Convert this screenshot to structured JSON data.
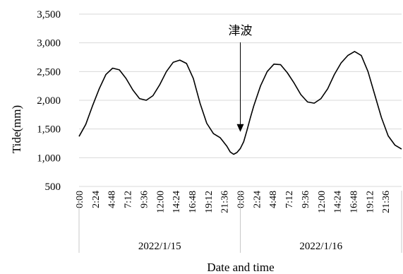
{
  "chart_data": {
    "type": "line",
    "title": "",
    "xlabel": "Date and time",
    "ylabel": "Tide(mm)",
    "ylim": [
      500,
      3500
    ],
    "y_ticks": [
      500,
      1000,
      1500,
      2000,
      2500,
      3000,
      3500
    ],
    "y_tick_labels": [
      "500",
      "1,000",
      "1,500",
      "2,000",
      "2,500",
      "3,000",
      "3,500"
    ],
    "x_tick_labels": [
      "0:00",
      "2:24",
      "4:48",
      "7:12",
      "9:36",
      "12:00",
      "14:24",
      "16:48",
      "19:12",
      "21:36",
      "0:00",
      "2:24",
      "4:48",
      "7:12",
      "9:36",
      "12:00",
      "14:24",
      "16:48",
      "19:12",
      "21:36"
    ],
    "x_range_hours": [
      0,
      48
    ],
    "date_groups": [
      "2022/1/15",
      "2022/1/16"
    ],
    "grid": "horizontal",
    "legend": "none",
    "series": [
      {
        "x": [
          0,
          1,
          2,
          3,
          4,
          5,
          6,
          7,
          8,
          9,
          10,
          11,
          12,
          13,
          14,
          15,
          16,
          17,
          18,
          19,
          20,
          21,
          22,
          22.5,
          23,
          23.5,
          24,
          24.5,
          25,
          25.5,
          26,
          27,
          28,
          29,
          30,
          31,
          32,
          33,
          34,
          35,
          36,
          37,
          38,
          39,
          40,
          41,
          42,
          43,
          44,
          45,
          46,
          47,
          48
        ],
        "y": [
          1370,
          1580,
          1900,
          2200,
          2450,
          2560,
          2530,
          2380,
          2180,
          2030,
          2000,
          2080,
          2270,
          2500,
          2660,
          2700,
          2640,
          2380,
          1950,
          1600,
          1420,
          1350,
          1200,
          1100,
          1060,
          1090,
          1160,
          1280,
          1480,
          1700,
          1900,
          2250,
          2500,
          2630,
          2620,
          2480,
          2300,
          2100,
          1970,
          1950,
          2030,
          2200,
          2450,
          2650,
          2780,
          2850,
          2780,
          2500,
          2100,
          1700,
          1380,
          1220,
          1150
        ]
      }
    ],
    "annotations": [
      {
        "text": "津波",
        "x": 24,
        "y": 1450
      }
    ],
    "color": "#000000",
    "grid_color": "#d9d9d9"
  }
}
